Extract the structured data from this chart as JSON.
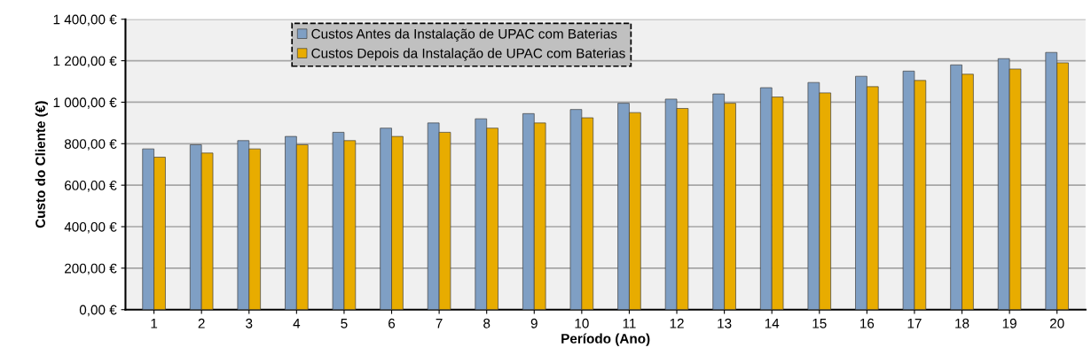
{
  "chart_data": {
    "type": "bar",
    "xlabel": "Período (Ano)",
    "ylabel": "Custo do Cliente (€)",
    "categories": [
      "1",
      "2",
      "3",
      "4",
      "5",
      "6",
      "7",
      "8",
      "9",
      "10",
      "11",
      "12",
      "13",
      "14",
      "15",
      "16",
      "17",
      "18",
      "19",
      "20"
    ],
    "series": [
      {
        "name": "Custos Antes da Instalação de UPAC com Baterias",
        "color": "#7f9fc4",
        "values": [
          775,
          795,
          815,
          835,
          855,
          875,
          900,
          920,
          945,
          965,
          995,
          1015,
          1040,
          1070,
          1095,
          1125,
          1150,
          1180,
          1210,
          1240
        ]
      },
      {
        "name": "Custos Depois da Instalação de UPAC com Baterias",
        "color": "#e8ac00",
        "values": [
          735,
          755,
          775,
          795,
          815,
          835,
          855,
          875,
          900,
          925,
          950,
          970,
          995,
          1025,
          1045,
          1075,
          1105,
          1135,
          1160,
          1190
        ]
      }
    ],
    "ylim": [
      0,
      1400
    ],
    "yticks": [
      {
        "value": 0,
        "label": "0,00 €"
      },
      {
        "value": 200,
        "label": "200,00 €"
      },
      {
        "value": 400,
        "label": "400,00 €"
      },
      {
        "value": 600,
        "label": "600,00 €"
      },
      {
        "value": 800,
        "label": "800,00 €"
      },
      {
        "value": 1000,
        "label": "1 000,00 €"
      },
      {
        "value": 1200,
        "label": "1 200,00 €"
      },
      {
        "value": 1400,
        "label": "1 400,00 €"
      }
    ],
    "grid": "y",
    "legend": "top"
  }
}
